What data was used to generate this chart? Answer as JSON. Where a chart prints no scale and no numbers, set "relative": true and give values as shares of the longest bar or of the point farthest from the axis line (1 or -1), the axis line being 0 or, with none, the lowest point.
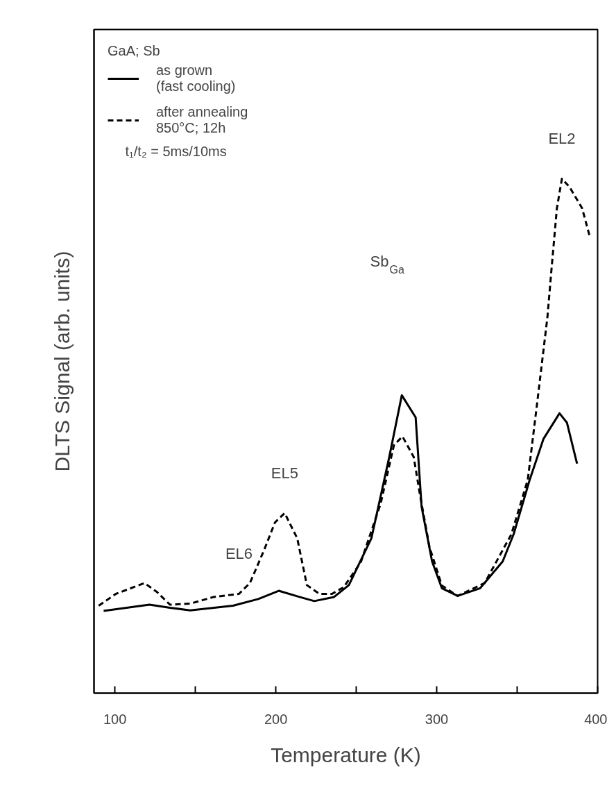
{
  "chart_data": {
    "type": "line",
    "relative": true,
    "xlabel": "Temperature (K)",
    "ylabel": "DLTS Signal (arb. units)",
    "legend_title": "GaA; Sb",
    "xlim": [
      87,
      400
    ],
    "xticks": [
      100,
      {
        "value": 150,
        "label": null
      },
      200,
      {
        "value": 250,
        "label": null
      },
      300,
      {
        "value": 350,
        "label": null
      },
      400
    ],
    "legend": "top left",
    "grid": false,
    "marker": "none",
    "tick_labels": "x",
    "series": [
      {
        "name": "as grown\n(fast cooling)",
        "color": "#000000",
        "line_style": "solid",
        "x": [
          93.0,
          121.5,
          134.2,
          146.8,
          173.4,
          189.1,
          201.8,
          214.7,
          223.9,
          236.2,
          245.4,
          259.4,
          270.5,
          278.3,
          286.9,
          290.6,
          297.1,
          303.2,
          313.0,
          327.0,
          341.0,
          347.8,
          357.8,
          366.3,
          376.3,
          380.9,
          387.2
        ],
        "values": [
          0.16,
          0.172,
          0.166,
          0.161,
          0.17,
          0.183,
          0.199,
          0.187,
          0.179,
          0.187,
          0.21,
          0.301,
          0.459,
          0.579,
          0.536,
          0.362,
          0.256,
          0.204,
          0.189,
          0.204,
          0.256,
          0.309,
          0.415,
          0.494,
          0.544,
          0.526,
          0.446
        ]
      },
      {
        "name": "after annealing\n850°C; 12h",
        "color": "#000000",
        "line_style": "dashed",
        "x": [
          89.9,
          100.6,
          118.4,
          126.0,
          134.2,
          146.8,
          161.5,
          177.1,
          183.9,
          192.7,
          199.5,
          205.5,
          213.3,
          219.3,
          227.1,
          234.9,
          242.2,
          252.9,
          265.2,
          273.4,
          278.7,
          285.7,
          289.4,
          295.5,
          303.2,
          313.0,
          329.8,
          346.4,
          356.6,
          362.8,
          368.8,
          371.6,
          374.7,
          377.8,
          382.5,
          390.3,
          395.0
        ],
        "values": [
          0.17,
          0.193,
          0.214,
          0.197,
          0.172,
          0.174,
          0.187,
          0.193,
          0.214,
          0.278,
          0.332,
          0.35,
          0.301,
          0.21,
          0.193,
          0.193,
          0.206,
          0.255,
          0.369,
          0.482,
          0.499,
          0.459,
          0.389,
          0.284,
          0.209,
          0.189,
          0.214,
          0.309,
          0.415,
          0.574,
          0.731,
          0.834,
          0.943,
          1.0,
          0.984,
          0.943,
          0.889
        ]
      }
    ],
    "annotations": [
      "t₁/t₂ = 5ms/10ms",
      {
        "text": "EL6",
        "x": 177.1,
        "y": 0.193
      },
      {
        "text": "EL5",
        "x": 205.5,
        "y": 0.35
      },
      "Sb$_{Ga}$",
      {
        "text": "EL2",
        "x": 377.8,
        "y": 1.0
      }
    ]
  }
}
